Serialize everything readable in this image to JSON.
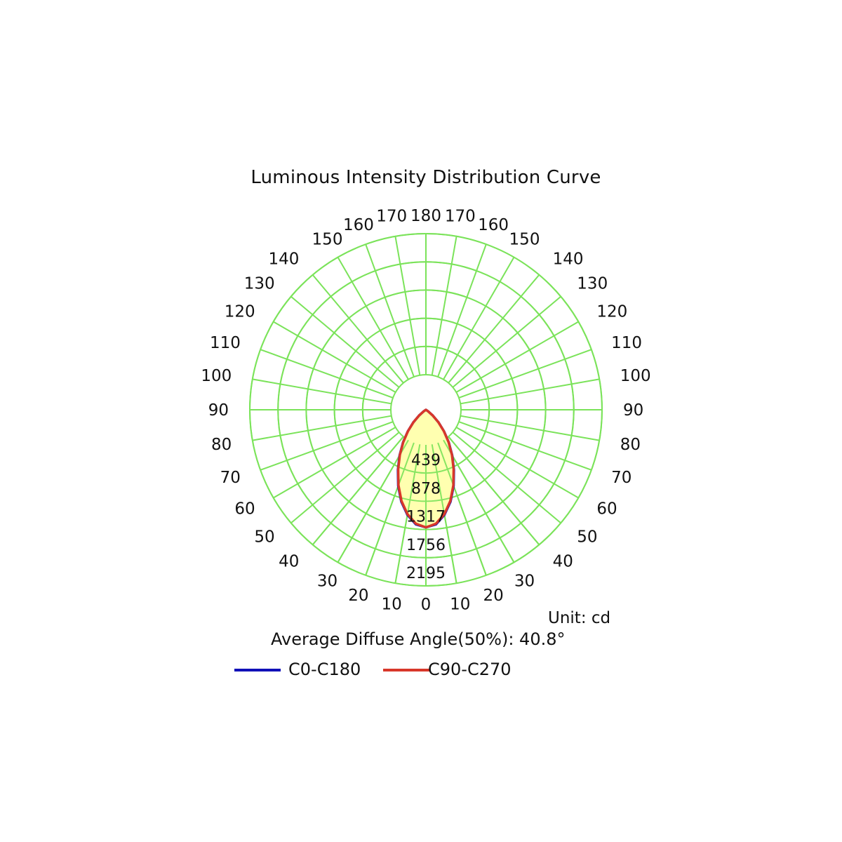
{
  "chart_data": {
    "type": "polar",
    "title": "Luminous Intensity Distribution Curve",
    "unit_label": "Unit: cd",
    "average_diffuse_angle_label": "Average Diffuse Angle(50%): 40.8°",
    "radial_max": 2195,
    "radial_ticks": [
      439,
      878,
      1317,
      1756,
      2195
    ],
    "angle_labels": [
      "0",
      "10",
      "20",
      "30",
      "40",
      "50",
      "60",
      "70",
      "80",
      "90",
      "100",
      "110",
      "120",
      "130",
      "140",
      "150",
      "160",
      "170",
      "180"
    ],
    "grid": true,
    "legend_placement": "bottom",
    "colors": {
      "grid": "#7be35a",
      "fill": "#ffffb0",
      "c0": "#1010b8",
      "c90": "#d8372a"
    },
    "series": [
      {
        "name": "C0-C180",
        "color": "#1010b8",
        "angles": [
          0,
          5,
          10,
          15,
          20,
          25,
          30,
          35,
          40,
          45,
          50,
          55,
          60,
          90
        ],
        "values": [
          1830,
          1790,
          1660,
          1480,
          1260,
          1030,
          820,
          620,
          440,
          280,
          140,
          40,
          0,
          0
        ]
      },
      {
        "name": "C90-C270",
        "color": "#d8372a",
        "angles": [
          0,
          5,
          10,
          15,
          20,
          25,
          30,
          35,
          40,
          45,
          50,
          55,
          60,
          90
        ],
        "values": [
          1830,
          1780,
          1650,
          1470,
          1250,
          1020,
          810,
          615,
          435,
          275,
          135,
          40,
          0,
          0
        ]
      }
    ]
  }
}
